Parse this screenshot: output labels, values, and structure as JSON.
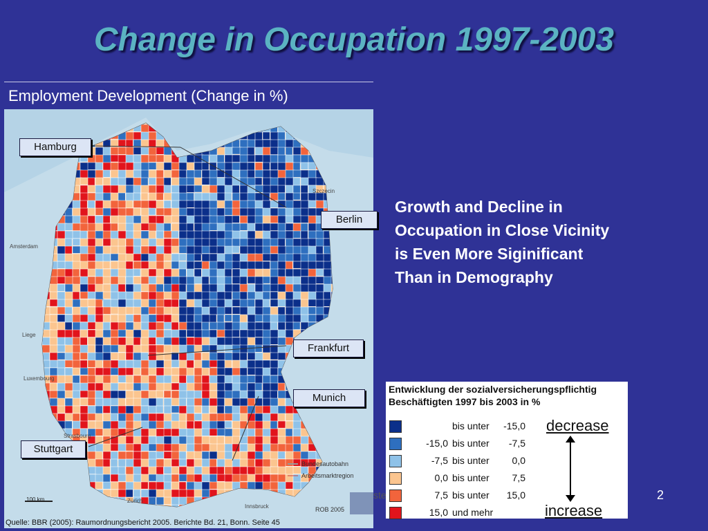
{
  "slide": {
    "title": "Change in Occupation 1997-2003",
    "subtitle": "Employment Development (Change in %)",
    "body": "Growth and Decline in Occupation in Close Vicinity is Even More Siginificant Than in Demography",
    "page_number": "2",
    "footer_fragment": "ste"
  },
  "map": {
    "cities": [
      "Hamburg",
      "Berlin",
      "Frankfurt",
      "Munich",
      "Stuttgart"
    ],
    "places": [
      "Szczecin",
      "Amsterdam",
      "Liege",
      "Luxembourg",
      "Strasbourg",
      "Zürich",
      "Innsbruck"
    ],
    "map_legend": [
      "Bundesautobahn",
      "Arbeitsmarktregion"
    ],
    "scale": "100 km",
    "credit": "ROB 2005",
    "source": "Quelle: BBR (2005): Raumordnungsbericht 2005. Berichte Bd. 21, Bonn. Seite 45"
  },
  "legend": {
    "title_line1": "Entwicklung der sozialversicherungspflichtig",
    "title_line2": "Beschäftigten 1997 bis 2003 in %",
    "decrease": "decrease",
    "increase": "increase",
    "classes": [
      {
        "from": "",
        "sep": "bis unter",
        "to": "-15,0",
        "color": "#0b2f8a"
      },
      {
        "from": "-15,0",
        "sep": "bis unter",
        "to": "-7,5",
        "color": "#2e6fbf"
      },
      {
        "from": "-7,5",
        "sep": "bis unter",
        "to": "0,0",
        "color": "#8fc2e8"
      },
      {
        "from": "0,0",
        "sep": "bis unter",
        "to": "7,5",
        "color": "#fbc58f"
      },
      {
        "from": "7,5",
        "sep": "bis unter",
        "to": "15,0",
        "color": "#f2643c"
      },
      {
        "from": "15,0",
        "sep": "und mehr",
        "to": "",
        "color": "#e1141c"
      }
    ]
  }
}
